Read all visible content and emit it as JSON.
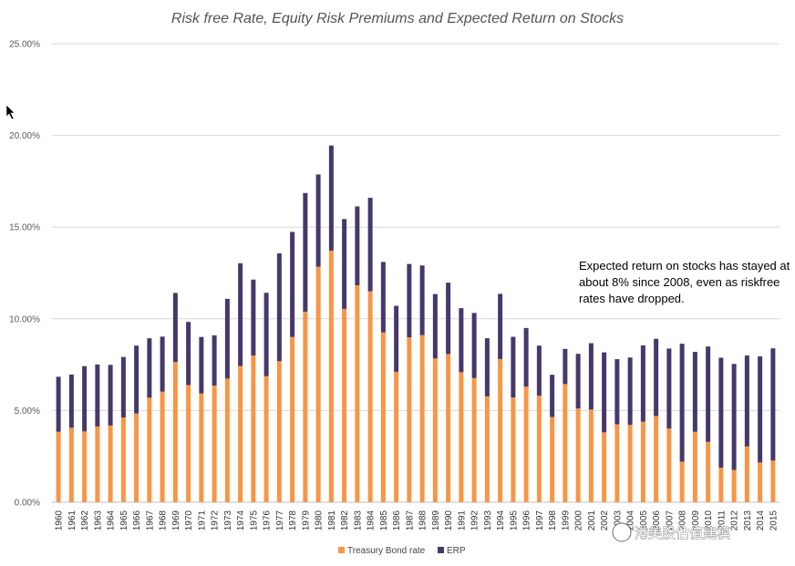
{
  "chart_data": {
    "type": "bar",
    "stacked": true,
    "title": "Risk free Rate, Equity Risk Premiums and Expected Return on Stocks",
    "categories": [
      "1960",
      "1961",
      "1962",
      "1963",
      "1964",
      "1965",
      "1966",
      "1967",
      "1968",
      "1969",
      "1970",
      "1971",
      "1972",
      "1973",
      "1974",
      "1975",
      "1976",
      "1977",
      "1978",
      "1979",
      "1980",
      "1981",
      "1982",
      "1983",
      "1984",
      "1985",
      "1986",
      "1987",
      "1988",
      "1989",
      "1990",
      "1991",
      "1992",
      "1993",
      "1994",
      "1995",
      "1996",
      "1997",
      "1998",
      "1999",
      "2000",
      "2001",
      "2002",
      "2003",
      "2004",
      "2005",
      "2006",
      "2007",
      "2008",
      "2009",
      "2010",
      "2011",
      "2012",
      "2013",
      "2014",
      "2015"
    ],
    "series": [
      {
        "name": "Treasury Bond rate",
        "color": "#f79646",
        "values": [
          3.84,
          4.06,
          3.86,
          4.13,
          4.18,
          4.62,
          4.84,
          5.7,
          6.03,
          7.65,
          6.39,
          5.93,
          6.36,
          6.74,
          7.43,
          8.0,
          6.87,
          7.69,
          9.01,
          10.39,
          12.84,
          13.72,
          10.54,
          11.83,
          11.5,
          9.26,
          7.11,
          8.99,
          9.11,
          7.84,
          8.08,
          7.09,
          6.77,
          5.77,
          7.81,
          5.71,
          6.3,
          5.81,
          4.65,
          6.44,
          5.11,
          5.05,
          3.81,
          4.25,
          4.22,
          4.39,
          4.7,
          4.02,
          2.21,
          3.84,
          3.29,
          1.88,
          1.76,
          3.04,
          2.17,
          2.27
        ]
      },
      {
        "name": "ERP",
        "color": "#46386a",
        "values": [
          3.0,
          2.9,
          3.56,
          3.38,
          3.31,
          3.3,
          3.7,
          3.24,
          3.0,
          3.76,
          3.44,
          3.08,
          2.74,
          4.35,
          5.6,
          4.14,
          4.55,
          5.88,
          5.73,
          6.47,
          5.03,
          5.73,
          4.9,
          4.3,
          5.1,
          3.84,
          3.6,
          4.0,
          3.8,
          3.51,
          3.89,
          3.49,
          3.55,
          3.17,
          3.55,
          3.31,
          3.2,
          2.73,
          2.3,
          1.92,
          2.98,
          3.62,
          4.36,
          3.55,
          3.67,
          4.16,
          4.21,
          4.36,
          6.43,
          4.36,
          5.2,
          6.0,
          5.78,
          4.96,
          5.78,
          6.12
        ]
      }
    ],
    "ylim": [
      0,
      25
    ],
    "yticks": [
      "0.00%",
      "5.00%",
      "10.00%",
      "15.00%",
      "20.00%",
      "25.00%"
    ],
    "grid": true,
    "legend_position": "bottom",
    "annotation": [
      "Expected return on stocks has stayed at",
      "about 8% since 2008, even as riskfree",
      "rates have dropped."
    ]
  },
  "watermark": "港美股估值建模",
  "colors": {
    "grid": "#d9d9d9",
    "axis": "#bfbfbf"
  }
}
